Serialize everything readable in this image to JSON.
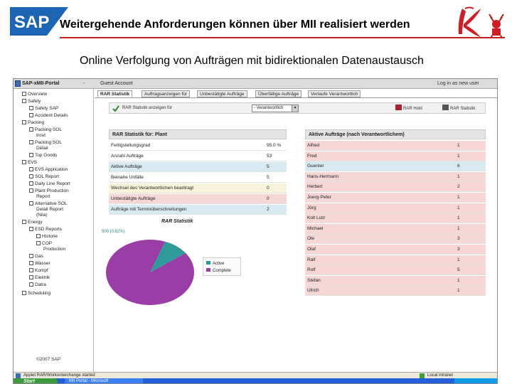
{
  "slide": {
    "title": "Weitergehende Anforderungen können über MII realisiert werden",
    "subtitle": "Online Verfolgung von Aufträgen mit bidirektionalen Datenaustausch",
    "logo_text": "SAP",
    "accent_color": "#cc1f1f"
  },
  "portal": {
    "title": "SAP-xMII-Portal",
    "dropdown_marker": "-",
    "user": "Guest Account",
    "login_link": "Log in as new user"
  },
  "sidebar": {
    "items": [
      {
        "label": "Overview"
      },
      {
        "label": "Safety"
      },
      {
        "label": "Safety SAP"
      },
      {
        "label": "Accident Details"
      },
      {
        "label": "Packing"
      },
      {
        "label": "Packing SOL"
      },
      {
        "label": "trout"
      },
      {
        "label": "Packing SOL"
      },
      {
        "label": "Detail"
      },
      {
        "label": "Top Goods"
      },
      {
        "label": "EVS"
      },
      {
        "label": "EVS Application"
      },
      {
        "label": "SOL Report"
      },
      {
        "label": "Daily Line Report"
      },
      {
        "label": "Plant Production"
      },
      {
        "label": "Report"
      },
      {
        "label": "Alternative SOL"
      },
      {
        "label": "Detail Report"
      },
      {
        "label": "(Nila)"
      },
      {
        "label": "Energy"
      },
      {
        "label": "ESD Reports"
      },
      {
        "label": "Historie"
      },
      {
        "label": "COP"
      },
      {
        "label": "Production"
      },
      {
        "label": "Gas"
      },
      {
        "label": "Wasser"
      },
      {
        "label": "Kompf"
      },
      {
        "label": "Elektrik"
      },
      {
        "label": "Datra"
      },
      {
        "label": "Scheduling"
      }
    ],
    "copyright": "©2007 SAP"
  },
  "tabs": [
    {
      "label": "RAR Statistik"
    },
    {
      "label": "Auftragsanzeigen für"
    },
    {
      "label": "Unbestätigte Aufträge"
    },
    {
      "label": "Überfällige Aufträge"
    },
    {
      "label": "Verlaufe Verantwortlich"
    }
  ],
  "toolbar": {
    "stat_button": "RAR Statistik anzeigen für",
    "select_value": "- Verantwortlich",
    "refresh_button": "RAR Hold",
    "detail_button": "RAR Statistik"
  },
  "left_table": {
    "header": "RAR Statistik für: Plant",
    "rows": [
      {
        "label": "Fertigstellungsgrad",
        "value": "95.0 %"
      },
      {
        "label": "Anzahl Aufträge",
        "value": "53"
      },
      {
        "label": "Aktive Aufträge",
        "value": "5"
      },
      {
        "label": "Beinahe Unfälle",
        "value": "5"
      },
      {
        "label": "Wechsel des Verantwortlichen beantragt",
        "value": "0"
      },
      {
        "label": "Unbestätigte Aufträge",
        "value": "0"
      },
      {
        "label": "Aufträge mit Terminüberschreitungen",
        "value": "2"
      }
    ]
  },
  "right_table": {
    "header": "Aktive Aufträge (nach Verantwortlichem)",
    "rows": [
      {
        "name": "Alfred",
        "count": "1"
      },
      {
        "name": "Fred",
        "count": "1"
      },
      {
        "name": "Guenter",
        "count": "6"
      },
      {
        "name": "Hans-Hermann",
        "count": "1"
      },
      {
        "name": "Herbert",
        "count": "2"
      },
      {
        "name": "Joerg-Peter",
        "count": "1"
      },
      {
        "name": "Jörg",
        "count": "1"
      },
      {
        "name": "Kolt Lutz",
        "count": "1"
      },
      {
        "name": "Michael",
        "count": "1"
      },
      {
        "name": "Ole",
        "count": "3"
      },
      {
        "name": "Olaf",
        "count": "3"
      },
      {
        "name": "Ralf",
        "count": "1"
      },
      {
        "name": "Rolf",
        "count": "5"
      },
      {
        "name": "Stefan",
        "count": "1"
      },
      {
        "name": "Ulrich",
        "count": "1"
      }
    ]
  },
  "chart_data": {
    "type": "pie",
    "title": "RAR Statistik",
    "label": "500 (0.82%)",
    "labels": [
      "Active",
      "Complete"
    ],
    "values": [
      9.4,
      90.6
    ],
    "colors": [
      "#2f9a9a",
      "#9b3da6"
    ]
  },
  "statusbar": {
    "text": "Applet RAR/Workorderchange started",
    "zone": "Local intranet"
  },
  "taskbar": {
    "start": "Start",
    "window": "MII Portal - Microsoft"
  },
  "colors": {
    "highlight_red": "#f7d6d6",
    "highlight_blue": "#d7e9f1",
    "highlight_yellow": "#f7f4d9",
    "row_plain": "#ffffff"
  }
}
